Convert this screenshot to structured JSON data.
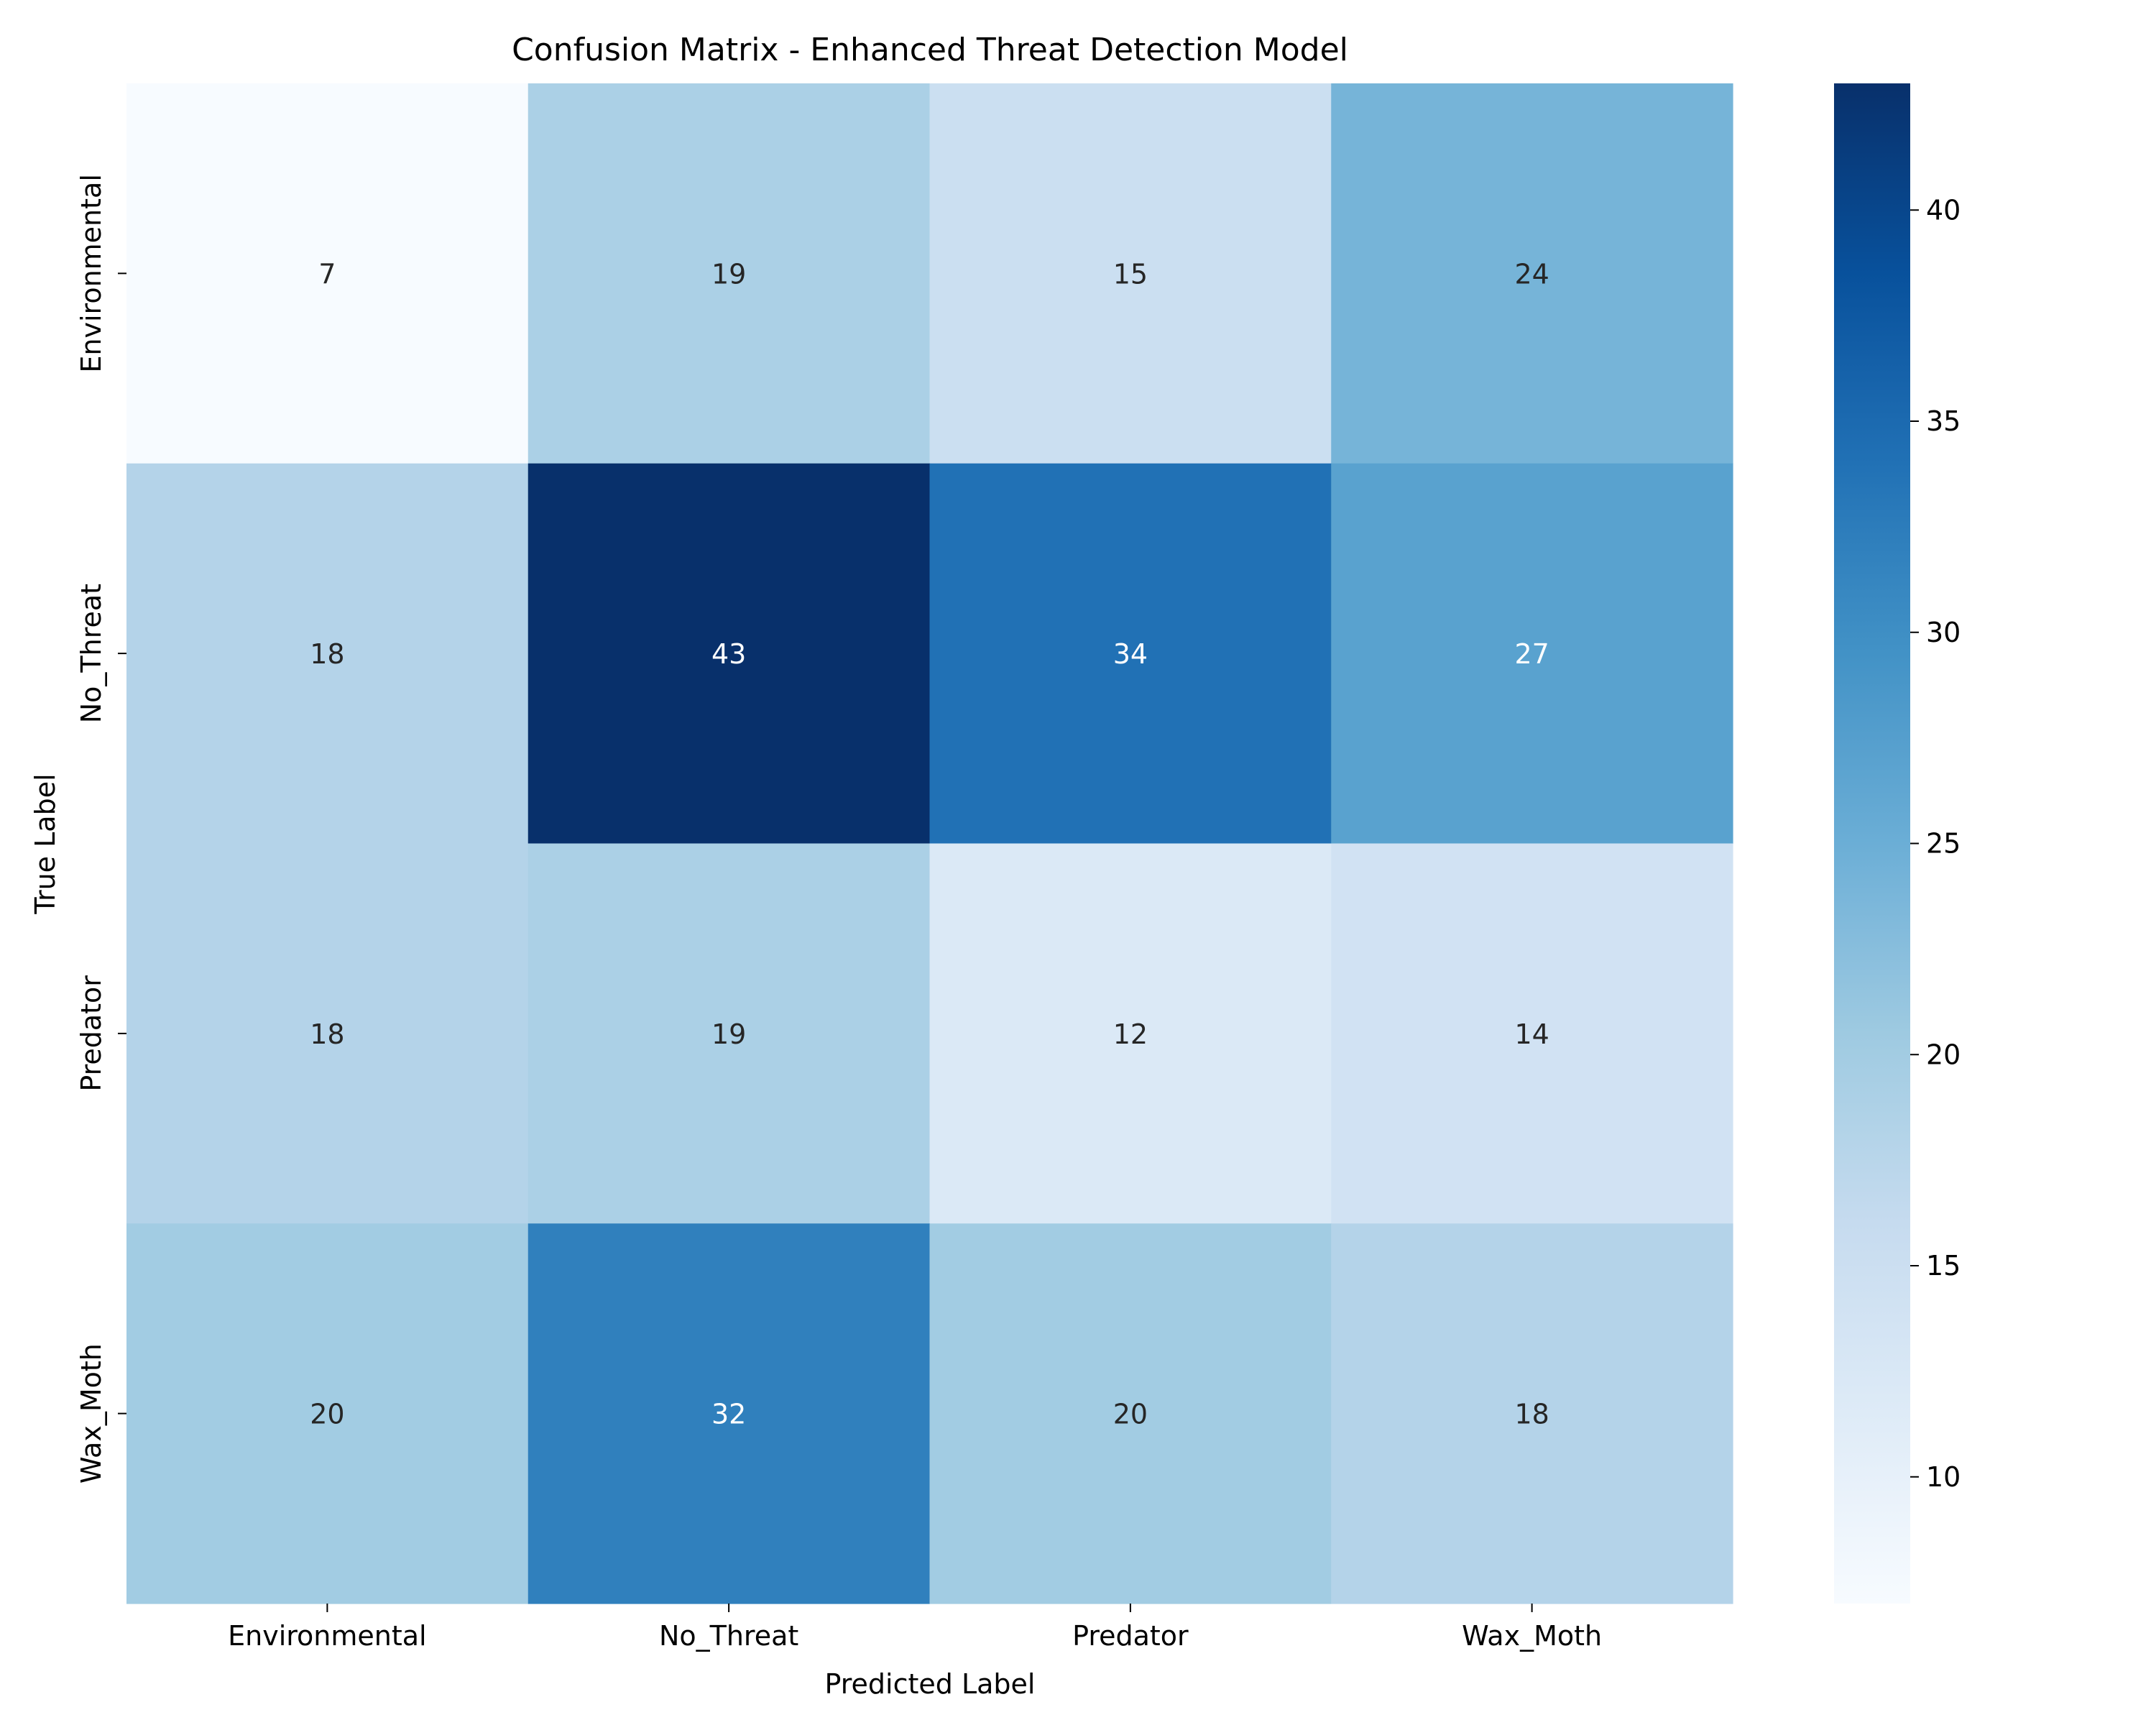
{
  "chart_data": {
    "type": "heatmap",
    "title": "Confusion Matrix - Enhanced Threat Detection Model",
    "xlabel": "Predicted Label",
    "ylabel": "True Label",
    "x_categories": [
      "Environmental",
      "No_Threat",
      "Predator",
      "Wax_Moth"
    ],
    "y_categories": [
      "Environmental",
      "No_Threat",
      "Predator",
      "Wax_Moth"
    ],
    "values": [
      [
        7,
        19,
        15,
        24
      ],
      [
        18,
        43,
        34,
        27
      ],
      [
        18,
        19,
        12,
        14
      ],
      [
        20,
        32,
        20,
        18
      ]
    ],
    "colormap": "Blues",
    "colorbar": {
      "range": [
        7,
        43
      ],
      "ticks": [
        10,
        15,
        20,
        25,
        30,
        35,
        40
      ]
    },
    "annotation_text_threshold": 25,
    "annotation_color_light": "#ffffff",
    "annotation_color_dark": "#262626"
  }
}
